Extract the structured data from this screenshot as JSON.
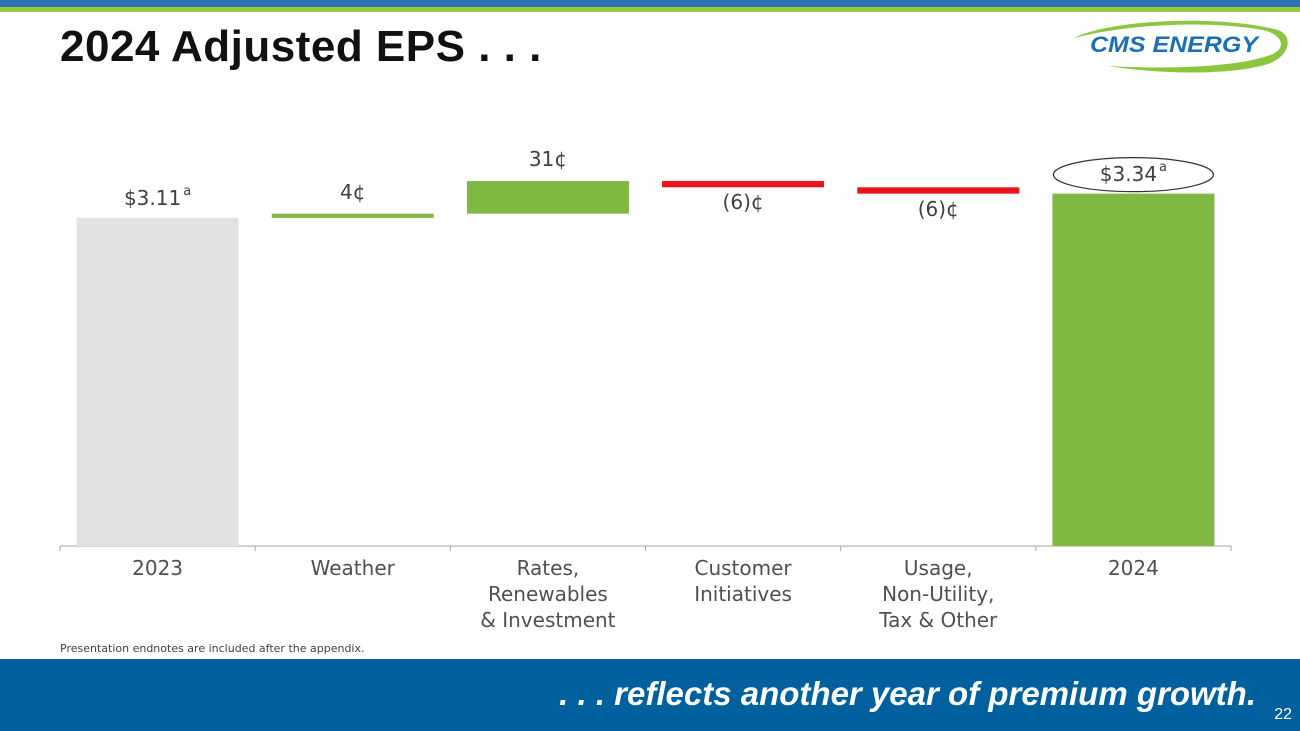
{
  "slide": {
    "title": "2024 Adjusted EPS . . .",
    "logo_text": "CMS ENERGY",
    "footnote": "Presentation endnotes are included after the appendix.",
    "tagline": ". . . reflects another year of premium growth.",
    "page_number": "22"
  },
  "colors": {
    "base_bar": "#e2e2e2",
    "increase": "#7fb942",
    "decrease": "#e8141c",
    "footer": "#00619e",
    "top_stripe_blue": "#2e73b8",
    "top_stripe_green": "#9cc83c",
    "logo_blue": "#1a6fb6",
    "logo_green": "#8cc63f"
  },
  "chart_data": {
    "type": "bar",
    "subtype": "waterfall",
    "categories": [
      "2023",
      "Weather",
      "Rates,\nRenewables\n& Investment",
      "Customer\nInitiatives",
      "Usage,\nNon-Utility,\nTax & Other",
      "2024"
    ],
    "values": [
      3.11,
      0.04,
      0.31,
      -0.06,
      -0.06,
      3.34
    ],
    "kinds": [
      "total",
      "increase",
      "increase",
      "decrease",
      "decrease",
      "total"
    ],
    "data_labels": [
      "$3.11",
      "4¢",
      "31¢",
      "(6)¢",
      "(6)¢",
      "$3.34"
    ],
    "label_superscripts": [
      "a",
      "",
      "",
      "",
      "",
      "a"
    ],
    "circled_label_index": 5,
    "title": "",
    "xlabel": "",
    "ylabel": "",
    "grid": false
  }
}
